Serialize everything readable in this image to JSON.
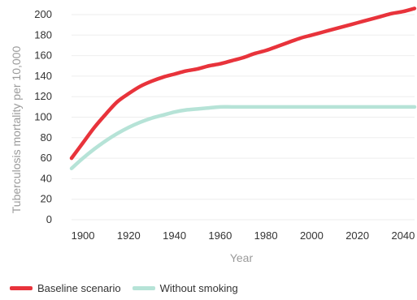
{
  "chart_data": {
    "type": "line",
    "xlabel": "Year",
    "ylabel": "Tuberculosis mortality per 10,000",
    "xlim": [
      1895,
      2045
    ],
    "ylim": [
      0,
      200
    ],
    "x_ticks": [
      1900,
      1920,
      1940,
      1960,
      1980,
      2000,
      2020,
      2040
    ],
    "y_ticks": [
      0,
      20,
      40,
      60,
      80,
      100,
      120,
      140,
      160,
      180,
      200
    ],
    "grid": "horizontal",
    "legend_position": "bottom-left",
    "series": [
      {
        "name": "Baseline scenario",
        "color": "#e8333b",
        "x": [
          1895,
          1900,
          1905,
          1910,
          1915,
          1920,
          1925,
          1930,
          1935,
          1940,
          1945,
          1950,
          1955,
          1960,
          1965,
          1970,
          1975,
          1980,
          1985,
          1990,
          1995,
          2000,
          2005,
          2010,
          2015,
          2020,
          2025,
          2030,
          2035,
          2040,
          2045
        ],
        "values": [
          60,
          75,
          90,
          103,
          115,
          123,
          130,
          135,
          139,
          142,
          145,
          147,
          150,
          152,
          155,
          158,
          162,
          165,
          169,
          173,
          177,
          180,
          183,
          186,
          189,
          192,
          195,
          198,
          201,
          203,
          206
        ]
      },
      {
        "name": "Without smoking",
        "color": "#b6e3d7",
        "x": [
          1895,
          1900,
          1905,
          1910,
          1915,
          1920,
          1925,
          1930,
          1935,
          1940,
          1945,
          1950,
          1955,
          1960,
          1965,
          1970,
          1980,
          1990,
          2000,
          2010,
          2020,
          2030,
          2040,
          2045
        ],
        "values": [
          50,
          60,
          69,
          77,
          84,
          90,
          95,
          99,
          102,
          105,
          107,
          108,
          109,
          110,
          110,
          110,
          110,
          110,
          110,
          110,
          110,
          110,
          110,
          110
        ]
      }
    ]
  }
}
